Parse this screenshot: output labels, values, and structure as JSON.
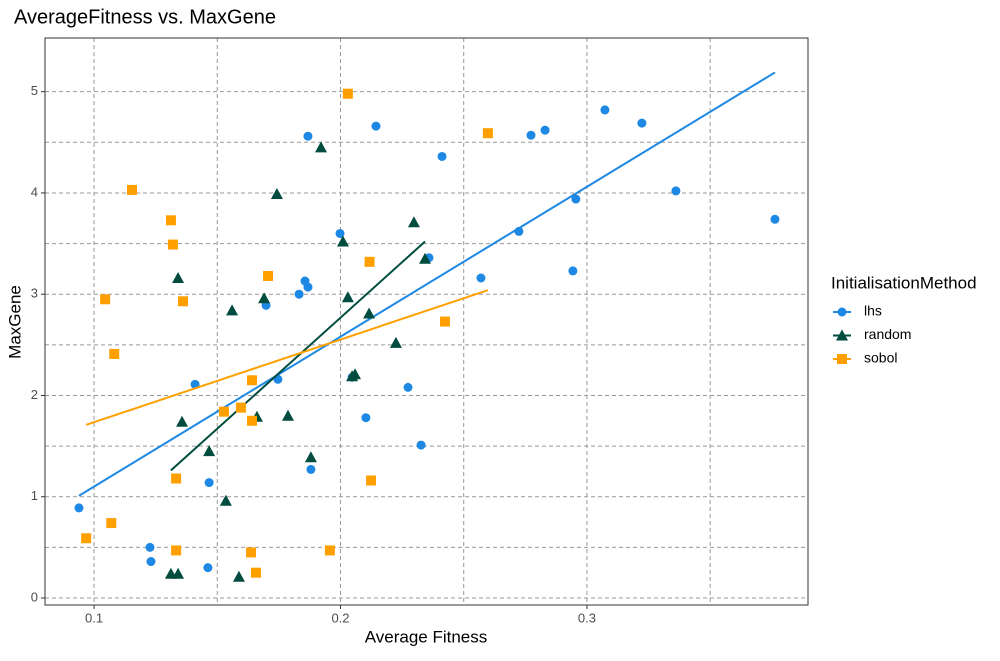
{
  "chart_data": {
    "type": "scatter",
    "title": "AverageFitness vs. MaxGene",
    "x_label": "Average Fitness",
    "y_label": "MaxGene",
    "legend_title": "InitialisationMethod",
    "legend_position": "right",
    "grid": true,
    "xlim": [
      0.0801,
      0.3897
    ],
    "ylim": [
      -0.069,
      5.53
    ],
    "xticks": [
      0.1,
      0.2,
      0.3
    ],
    "yticks": [
      0,
      1,
      2,
      3,
      4,
      5
    ],
    "x_minor_grid": [
      0.15,
      0.25,
      0.35
    ],
    "y_minor_grid": [
      0.5,
      1.5,
      2.5,
      3.5,
      4.5
    ],
    "series": [
      {
        "name": "lhs",
        "color": "#1E88E5",
        "marker": "circle",
        "x": [
          0.0939,
          0.1227,
          0.1231,
          0.141,
          0.1467,
          0.1462,
          0.1698,
          0.1746,
          0.1832,
          0.1856,
          0.1868,
          0.1868,
          0.188,
          0.1998,
          0.2047,
          0.2103,
          0.2144,
          0.2274,
          0.2327,
          0.2359,
          0.2412,
          0.257,
          0.2724,
          0.2773,
          0.283,
          0.2943,
          0.2955,
          0.3073,
          0.3223,
          0.3361,
          0.3763
        ],
        "values": [
          0.89,
          0.5,
          0.36,
          2.11,
          1.14,
          0.3,
          2.89,
          2.16,
          3.0,
          3.13,
          3.07,
          4.56,
          1.27,
          3.6,
          2.18,
          1.78,
          4.66,
          2.08,
          1.51,
          3.36,
          4.36,
          3.16,
          3.62,
          4.57,
          4.62,
          3.23,
          3.94,
          4.82,
          4.69,
          4.02,
          3.74
        ],
        "fit": {
          "x": [
            0.0939,
            0.3763
          ],
          "y": [
            1.01,
            5.19
          ]
        }
      },
      {
        "name": "random",
        "color": "#004D40",
        "marker": "triangle",
        "x": [
          0.1341,
          0.1357,
          0.1312,
          0.1341,
          0.1467,
          0.1535,
          0.156,
          0.1588,
          0.1661,
          0.169,
          0.1742,
          0.1787,
          0.188,
          0.1921,
          0.201,
          0.203,
          0.2047,
          0.2059,
          0.2116,
          0.2225,
          0.2298,
          0.2343
        ],
        "values": [
          3.16,
          1.74,
          0.24,
          0.24,
          1.45,
          0.96,
          2.84,
          0.21,
          1.79,
          2.96,
          3.99,
          1.8,
          1.39,
          4.45,
          3.52,
          2.97,
          2.19,
          2.21,
          2.81,
          2.52,
          3.71,
          3.35
        ],
        "fit": {
          "x": [
            0.1312,
            0.2343
          ],
          "y": [
            1.26,
            3.52
          ]
        }
      },
      {
        "name": "sobol",
        "color": "#FFA000",
        "marker": "square",
        "x": [
          0.0968,
          0.1045,
          0.107,
          0.1082,
          0.1154,
          0.1312,
          0.132,
          0.1333,
          0.1333,
          0.1361,
          0.1527,
          0.1596,
          0.1637,
          0.1641,
          0.1641,
          0.1657,
          0.1706,
          0.1957,
          0.203,
          0.2118,
          0.2124,
          0.2424,
          0.2598
        ],
        "values": [
          0.59,
          2.95,
          0.74,
          2.41,
          4.03,
          3.73,
          3.49,
          1.18,
          0.47,
          2.93,
          1.84,
          1.88,
          0.45,
          1.75,
          2.15,
          0.25,
          3.18,
          0.47,
          4.98,
          3.32,
          1.16,
          2.73,
          4.59
        ],
        "fit": {
          "x": [
            0.0968,
            0.2598
          ],
          "y": [
            1.71,
            3.04
          ]
        }
      }
    ]
  }
}
